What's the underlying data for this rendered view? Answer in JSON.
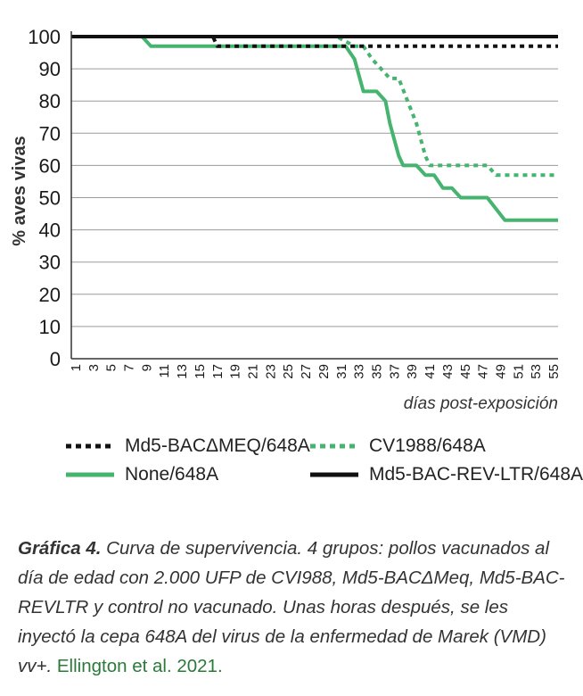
{
  "chart_data": {
    "type": "line",
    "ylabel": "% aves vivas",
    "xlabel": "días post-exposición",
    "ylim": [
      0,
      100
    ],
    "xlim": [
      1,
      56
    ],
    "yticks": [
      0,
      10,
      20,
      30,
      40,
      50,
      60,
      70,
      80,
      90,
      100
    ],
    "xticks": [
      "1",
      "3",
      "5",
      "7",
      "9",
      "11",
      "13",
      "15",
      "17",
      "19",
      "21",
      "23",
      "25",
      "27",
      "29",
      "31",
      "33",
      "35",
      "37",
      "39",
      "41",
      "43",
      "45",
      "47",
      "49",
      "51",
      "53",
      "55"
    ],
    "grid": true,
    "legend_position": "bottom",
    "series": [
      {
        "name": "Md5-BACΔMEQ/648A",
        "color": "#111111",
        "style": "dotted",
        "points": [
          [
            1,
            100
          ],
          [
            17,
            100
          ],
          [
            17.5,
            97
          ],
          [
            56,
            97
          ]
        ]
      },
      {
        "name": "CV1988/648A",
        "color": "#45b46e",
        "style": "dotted",
        "points": [
          [
            1,
            100
          ],
          [
            31,
            100
          ],
          [
            33,
            97
          ],
          [
            34,
            97
          ],
          [
            35,
            93
          ],
          [
            36,
            90
          ],
          [
            37,
            87
          ],
          [
            38,
            87
          ],
          [
            39,
            80
          ],
          [
            40,
            73
          ],
          [
            41,
            63
          ],
          [
            41.5,
            60
          ],
          [
            48,
            60
          ],
          [
            49,
            57
          ],
          [
            56,
            57
          ]
        ]
      },
      {
        "name": "None/648A",
        "color": "#45b46e",
        "style": "solid",
        "points": [
          [
            1,
            100
          ],
          [
            9,
            100
          ],
          [
            10,
            97
          ],
          [
            32,
            97
          ],
          [
            33,
            93
          ],
          [
            34,
            83
          ],
          [
            35.5,
            83
          ],
          [
            36.5,
            80
          ],
          [
            37,
            73
          ],
          [
            38,
            63
          ],
          [
            38.5,
            60
          ],
          [
            40,
            60
          ],
          [
            41,
            57
          ],
          [
            42,
            57
          ],
          [
            43,
            53
          ],
          [
            44,
            53
          ],
          [
            45,
            50
          ],
          [
            48,
            50
          ],
          [
            50,
            43
          ],
          [
            56,
            43
          ]
        ]
      },
      {
        "name": "Md5-BAC-REV-LTR/648A",
        "color": "#111111",
        "style": "solid",
        "points": [
          [
            1,
            100
          ],
          [
            56,
            100
          ]
        ]
      }
    ]
  },
  "caption": {
    "lead": "Gráfica 4.",
    "text": " Curva de supervivencia.  4 grupos: pollos vacunados al día de edad con 2.000 UFP de CVI988, Md5-BACΔMeq, Md5-BAC-REVLTR y control no vacunado. Unas horas después, se les inyectó la cepa 648A del virus de la enfermedad de Marek (VMD) vv+.",
    "reference": "Ellington et al. 2021."
  }
}
